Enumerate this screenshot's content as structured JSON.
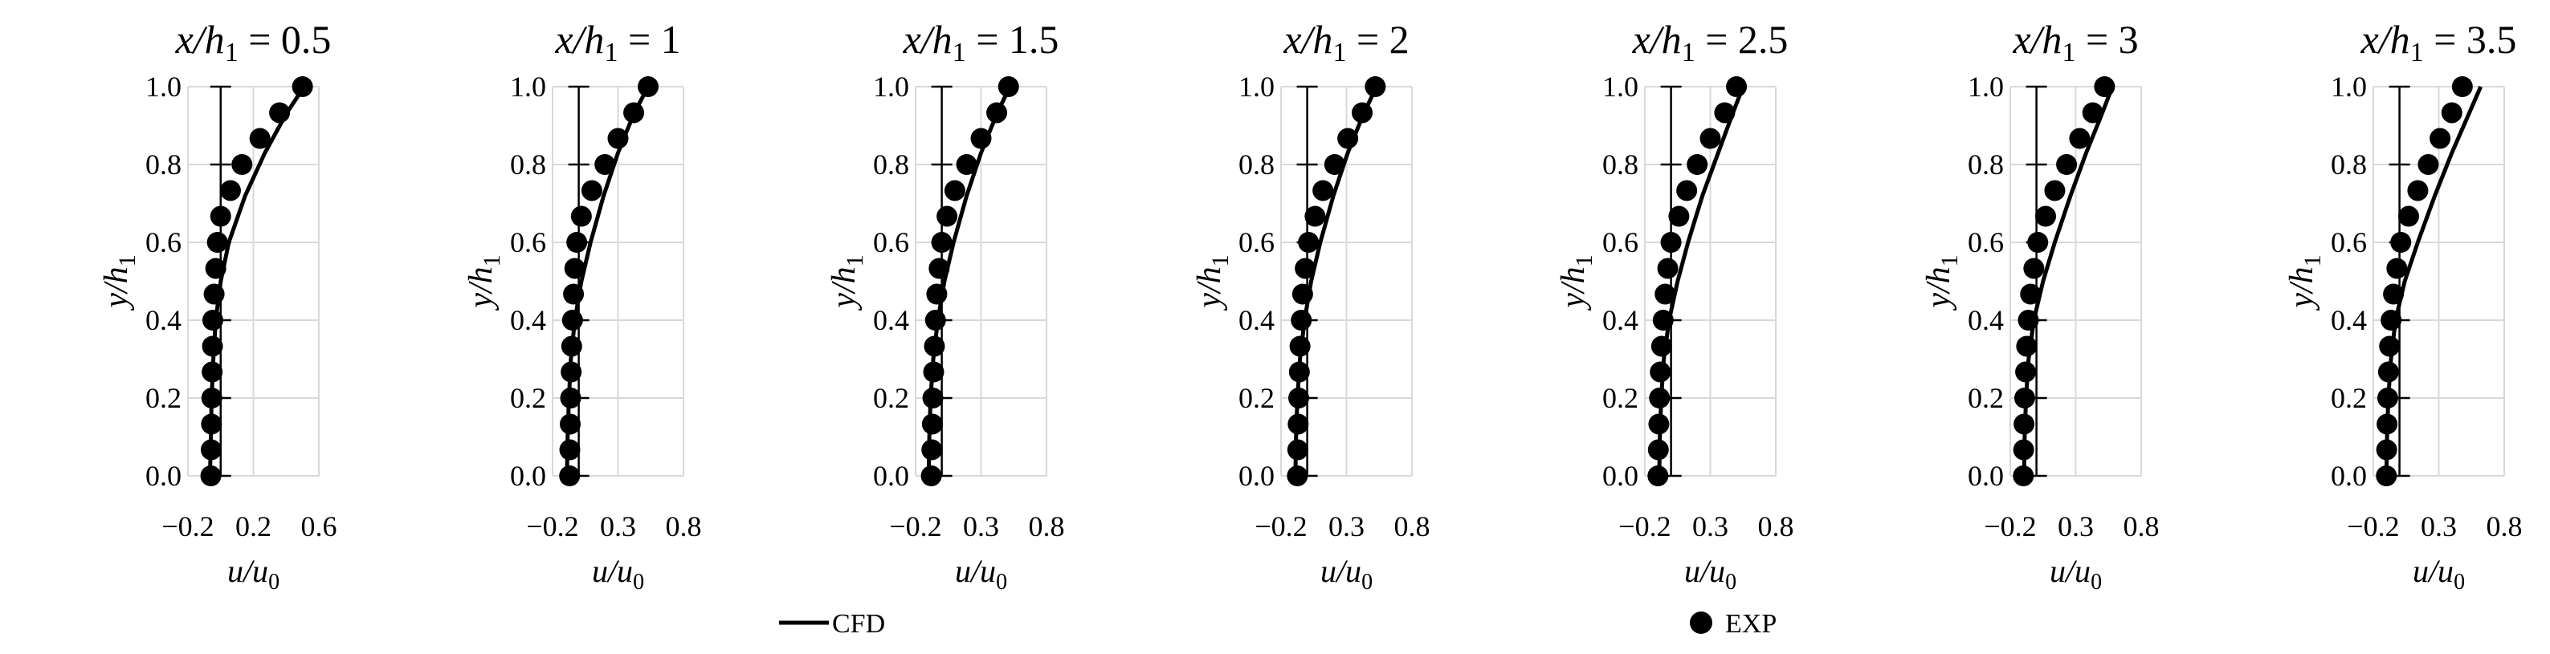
{
  "colors": {
    "series_line": "#000000",
    "series_marker": "#000000",
    "grid": "#d9d9d9",
    "axis": "#000000"
  },
  "chart_data": [
    {
      "type": "line",
      "title_prefix": "x/h",
      "title_sub": "1",
      "title_value": "= 0.5",
      "xlabel_main": "u/u",
      "xlabel_sub": "0",
      "ylabel_main": "y/h",
      "ylabel_sub": "1",
      "xlim": [
        -0.2,
        0.6
      ],
      "xticks": [
        -0.2,
        0.2,
        0.6
      ],
      "xtick_labels": [
        "−0.2",
        "0.2",
        "0.6"
      ],
      "ylim": [
        0,
        1
      ],
      "yticks": [
        0,
        0.2,
        0.4,
        0.6,
        0.8,
        1.0
      ],
      "ytick_labels": [
        "0.0",
        "0.2",
        "0.4",
        "0.6",
        "0.8",
        "1.0"
      ],
      "grid": true,
      "series": [
        {
          "name": "CFD",
          "kind": "line",
          "x": [
            -0.065,
            -0.06,
            -0.055,
            -0.045,
            -0.03,
            0.0,
            0.05,
            0.15,
            0.27,
            0.4,
            0.51
          ],
          "y": [
            0.0,
            0.1,
            0.2,
            0.3,
            0.4,
            0.5,
            0.6,
            0.72,
            0.83,
            0.93,
            1.0
          ]
        },
        {
          "name": "EXP",
          "kind": "marker",
          "x": [
            -0.06,
            -0.058,
            -0.056,
            -0.054,
            -0.052,
            -0.05,
            -0.048,
            -0.04,
            -0.03,
            -0.02,
            0.0,
            0.06,
            0.13,
            0.24,
            0.36,
            0.5
          ],
          "y": [
            0.0,
            0.067,
            0.133,
            0.2,
            0.267,
            0.333,
            0.4,
            0.467,
            0.533,
            0.6,
            0.667,
            0.733,
            0.8,
            0.867,
            0.933,
            1.0
          ]
        }
      ]
    },
    {
      "type": "line",
      "title_prefix": "x/h",
      "title_sub": "1",
      "title_value": "= 1",
      "xlabel_main": "u/u",
      "xlabel_sub": "0",
      "ylabel_main": "y/h",
      "ylabel_sub": "1",
      "xlim": [
        -0.2,
        0.8
      ],
      "xticks": [
        -0.2,
        0.3,
        0.8
      ],
      "xtick_labels": [
        "−0.2",
        "0.3",
        "0.8"
      ],
      "ylim": [
        0,
        1
      ],
      "yticks": [
        0,
        0.2,
        0.4,
        0.6,
        0.8,
        1.0
      ],
      "ytick_labels": [
        "0.0",
        "0.2",
        "0.4",
        "0.6",
        "0.8",
        "1.0"
      ],
      "grid": true,
      "series": [
        {
          "name": "CFD",
          "kind": "line",
          "x": [
            -0.09,
            -0.085,
            -0.075,
            -0.06,
            -0.03,
            0.02,
            0.09,
            0.19,
            0.3,
            0.42,
            0.53
          ],
          "y": [
            0.0,
            0.1,
            0.2,
            0.3,
            0.4,
            0.5,
            0.6,
            0.72,
            0.83,
            0.93,
            1.0
          ]
        },
        {
          "name": "EXP",
          "kind": "marker",
          "x": [
            -0.07,
            -0.068,
            -0.065,
            -0.062,
            -0.058,
            -0.054,
            -0.048,
            -0.04,
            -0.03,
            -0.015,
            0.02,
            0.1,
            0.2,
            0.3,
            0.42,
            0.53
          ],
          "y": [
            0.0,
            0.067,
            0.133,
            0.2,
            0.267,
            0.333,
            0.4,
            0.467,
            0.533,
            0.6,
            0.667,
            0.733,
            0.8,
            0.867,
            0.933,
            1.0
          ]
        }
      ]
    },
    {
      "type": "line",
      "title_prefix": "x/h",
      "title_sub": "1",
      "title_value": "= 1.5",
      "xlabel_main": "u/u",
      "xlabel_sub": "0",
      "ylabel_main": "y/h",
      "ylabel_sub": "1",
      "xlim": [
        -0.2,
        0.8
      ],
      "xticks": [
        -0.2,
        0.3,
        0.8
      ],
      "xtick_labels": [
        "−0.2",
        "0.3",
        "0.8"
      ],
      "ylim": [
        0,
        1
      ],
      "yticks": [
        0,
        0.2,
        0.4,
        0.6,
        0.8,
        1.0
      ],
      "ytick_labels": [
        "0.0",
        "0.2",
        "0.4",
        "0.6",
        "0.8",
        "1.0"
      ],
      "grid": true,
      "series": [
        {
          "name": "CFD",
          "kind": "line",
          "x": [
            -0.1,
            -0.095,
            -0.085,
            -0.065,
            -0.03,
            0.02,
            0.09,
            0.19,
            0.3,
            0.42,
            0.52
          ],
          "y": [
            0.0,
            0.1,
            0.2,
            0.3,
            0.4,
            0.5,
            0.6,
            0.72,
            0.83,
            0.93,
            1.0
          ]
        },
        {
          "name": "EXP",
          "kind": "marker",
          "x": [
            -0.08,
            -0.076,
            -0.072,
            -0.068,
            -0.062,
            -0.056,
            -0.048,
            -0.038,
            -0.02,
            0.0,
            0.04,
            0.1,
            0.19,
            0.3,
            0.42,
            0.51
          ],
          "y": [
            0.0,
            0.067,
            0.133,
            0.2,
            0.267,
            0.333,
            0.4,
            0.467,
            0.533,
            0.6,
            0.667,
            0.733,
            0.8,
            0.867,
            0.933,
            1.0
          ]
        }
      ]
    },
    {
      "type": "line",
      "title_prefix": "x/h",
      "title_sub": "1",
      "title_value": "= 2",
      "xlabel_main": "u/u",
      "xlabel_sub": "0",
      "ylabel_main": "y/h",
      "ylabel_sub": "1",
      "xlim": [
        -0.2,
        0.8
      ],
      "xticks": [
        -0.2,
        0.3,
        0.8
      ],
      "xtick_labels": [
        "−0.2",
        "0.3",
        "0.8"
      ],
      "ylim": [
        0,
        1
      ],
      "yticks": [
        0,
        0.2,
        0.4,
        0.6,
        0.8,
        1.0
      ],
      "ytick_labels": [
        "0.0",
        "0.2",
        "0.4",
        "0.6",
        "0.8",
        "1.0"
      ],
      "grid": true,
      "series": [
        {
          "name": "CFD",
          "kind": "line",
          "x": [
            -0.09,
            -0.085,
            -0.075,
            -0.055,
            -0.02,
            0.03,
            0.1,
            0.2,
            0.31,
            0.43,
            0.53
          ],
          "y": [
            0.0,
            0.1,
            0.2,
            0.3,
            0.4,
            0.5,
            0.6,
            0.72,
            0.83,
            0.93,
            1.0
          ]
        },
        {
          "name": "EXP",
          "kind": "marker",
          "x": [
            -0.075,
            -0.072,
            -0.069,
            -0.065,
            -0.06,
            -0.055,
            -0.045,
            -0.035,
            -0.015,
            0.01,
            0.06,
            0.12,
            0.21,
            0.31,
            0.42,
            0.52
          ],
          "y": [
            0.0,
            0.067,
            0.133,
            0.2,
            0.267,
            0.333,
            0.4,
            0.467,
            0.533,
            0.6,
            0.667,
            0.733,
            0.8,
            0.867,
            0.933,
            1.0
          ]
        }
      ]
    },
    {
      "type": "line",
      "title_prefix": "x/h",
      "title_sub": "1",
      "title_value": "= 2.5",
      "xlabel_main": "u/u",
      "xlabel_sub": "0",
      "ylabel_main": "y/h",
      "ylabel_sub": "1",
      "xlim": [
        -0.2,
        0.8
      ],
      "xticks": [
        -0.2,
        0.3,
        0.8
      ],
      "xtick_labels": [
        "−0.2",
        "0.3",
        "0.8"
      ],
      "ylim": [
        0,
        1
      ],
      "yticks": [
        0,
        0.2,
        0.4,
        0.6,
        0.8,
        1.0
      ],
      "ytick_labels": [
        "0.0",
        "0.2",
        "0.4",
        "0.6",
        "0.8",
        "1.0"
      ],
      "grid": true,
      "series": [
        {
          "name": "CFD",
          "kind": "line",
          "x": [
            -0.09,
            -0.085,
            -0.075,
            -0.055,
            -0.015,
            0.05,
            0.13,
            0.24,
            0.36,
            0.47,
            0.55
          ],
          "y": [
            0.0,
            0.1,
            0.2,
            0.3,
            0.4,
            0.5,
            0.6,
            0.72,
            0.83,
            0.93,
            1.0
          ]
        },
        {
          "name": "EXP",
          "kind": "marker",
          "x": [
            -0.1,
            -0.097,
            -0.093,
            -0.088,
            -0.082,
            -0.072,
            -0.06,
            -0.045,
            -0.025,
            0.0,
            0.06,
            0.12,
            0.2,
            0.3,
            0.41,
            0.5
          ],
          "y": [
            0.0,
            0.067,
            0.133,
            0.2,
            0.267,
            0.333,
            0.4,
            0.467,
            0.533,
            0.6,
            0.667,
            0.733,
            0.8,
            0.867,
            0.933,
            1.0
          ]
        }
      ]
    },
    {
      "type": "line",
      "title_prefix": "x/h",
      "title_sub": "1",
      "title_value": "= 3",
      "xlabel_main": "u/u",
      "xlabel_sub": "0",
      "ylabel_main": "y/h",
      "ylabel_sub": "1",
      "xlim": [
        -0.2,
        0.8
      ],
      "xticks": [
        -0.2,
        0.3,
        0.8
      ],
      "xtick_labels": [
        "−0.2",
        "0.3",
        "0.8"
      ],
      "ylim": [
        0,
        1
      ],
      "yticks": [
        0,
        0.2,
        0.4,
        0.6,
        0.8,
        1.0
      ],
      "ytick_labels": [
        "0.0",
        "0.2",
        "0.4",
        "0.6",
        "0.8",
        "1.0"
      ],
      "grid": true,
      "series": [
        {
          "name": "CFD",
          "kind": "line",
          "x": [
            -0.095,
            -0.09,
            -0.08,
            -0.06,
            -0.02,
            0.05,
            0.14,
            0.26,
            0.38,
            0.5,
            0.58
          ],
          "y": [
            0.0,
            0.1,
            0.2,
            0.3,
            0.4,
            0.5,
            0.6,
            0.72,
            0.83,
            0.93,
            1.0
          ]
        },
        {
          "name": "EXP",
          "kind": "marker",
          "x": [
            -0.1,
            -0.098,
            -0.095,
            -0.09,
            -0.083,
            -0.075,
            -0.062,
            -0.045,
            -0.02,
            0.01,
            0.07,
            0.14,
            0.23,
            0.33,
            0.43,
            0.52
          ],
          "y": [
            0.0,
            0.067,
            0.133,
            0.2,
            0.267,
            0.333,
            0.4,
            0.467,
            0.533,
            0.6,
            0.667,
            0.733,
            0.8,
            0.867,
            0.933,
            1.0
          ]
        }
      ]
    },
    {
      "type": "line",
      "title_prefix": "x/h",
      "title_sub": "1",
      "title_value": "= 3.5",
      "xlabel_main": "u/u",
      "xlabel_sub": "0",
      "ylabel_main": "y/h",
      "ylabel_sub": "1",
      "xlim": [
        -0.2,
        0.8
      ],
      "xticks": [
        -0.2,
        0.3,
        0.8
      ],
      "xtick_labels": [
        "−0.2",
        "0.3",
        "0.8"
      ],
      "ylim": [
        0,
        1
      ],
      "yticks": [
        0,
        0.2,
        0.4,
        0.6,
        0.8,
        1.0
      ],
      "ytick_labels": [
        "0.0",
        "0.2",
        "0.4",
        "0.6",
        "0.8",
        "1.0"
      ],
      "grid": true,
      "series": [
        {
          "name": "CFD",
          "kind": "line",
          "x": [
            -0.1,
            -0.095,
            -0.085,
            -0.065,
            -0.03,
            0.04,
            0.14,
            0.27,
            0.4,
            0.53,
            0.62
          ],
          "y": [
            0.0,
            0.1,
            0.2,
            0.3,
            0.4,
            0.5,
            0.6,
            0.72,
            0.83,
            0.93,
            1.0
          ]
        },
        {
          "name": "EXP",
          "kind": "marker",
          "x": [
            -0.1,
            -0.098,
            -0.095,
            -0.09,
            -0.084,
            -0.076,
            -0.064,
            -0.046,
            -0.02,
            0.01,
            0.07,
            0.14,
            0.22,
            0.31,
            0.4,
            0.48
          ],
          "y": [
            0.0,
            0.067,
            0.133,
            0.2,
            0.267,
            0.333,
            0.4,
            0.467,
            0.533,
            0.6,
            0.667,
            0.733,
            0.8,
            0.867,
            0.933,
            1.0
          ]
        }
      ]
    }
  ],
  "legend": {
    "placement": "bottom",
    "entries": [
      {
        "name": "CFD",
        "kind": "line"
      },
      {
        "name": "EXP",
        "kind": "marker"
      }
    ]
  }
}
